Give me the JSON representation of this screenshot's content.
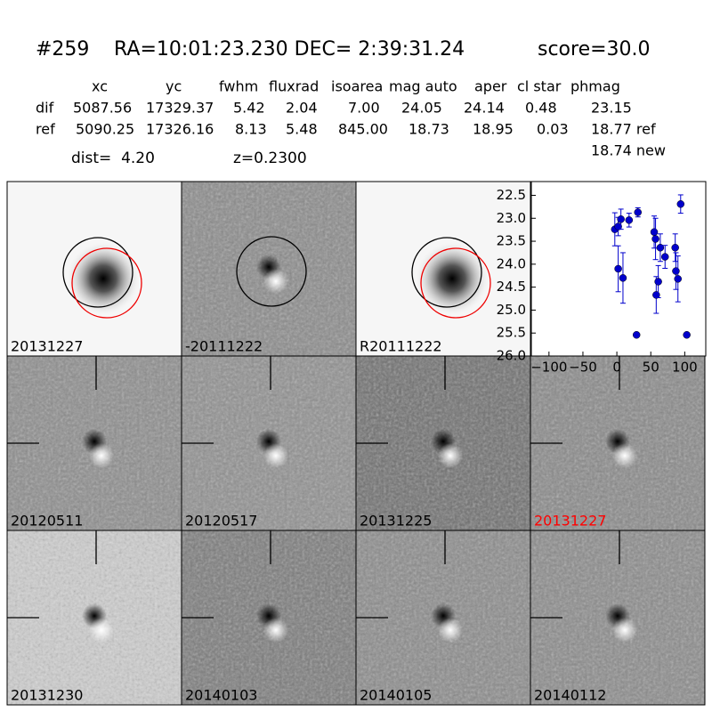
{
  "header": {
    "id": "#259",
    "coords": "RA=10:01:23.230 DEC= 2:39:31.24",
    "score": "score=30.0"
  },
  "table": {
    "columns": [
      "xc",
      "yc",
      "fwhm",
      "fluxrad",
      "isoarea",
      "mag auto",
      "aper",
      "cl star",
      "phmag"
    ],
    "rows": [
      {
        "label": "dif",
        "cells": [
          "5087.56",
          "17329.37",
          "5.42",
          "2.04",
          "7.00",
          "24.05",
          "24.14",
          "0.48",
          "23.15"
        ]
      },
      {
        "label": "ref",
        "cells": [
          "5090.25",
          "17326.16",
          "8.13",
          "5.48",
          "845.00",
          "18.73",
          "18.95",
          "0.03",
          "18.77 ref"
        ]
      }
    ],
    "extra": "18.74 new"
  },
  "dist": "dist=  4.20",
  "z": "z=0.2300",
  "stamps": [
    {
      "label": "20131227"
    },
    {
      "label": "-20111222"
    },
    {
      "label": "R20111222"
    },
    {
      "label": "20120511"
    },
    {
      "label": "20120517"
    },
    {
      "label": "20131225"
    },
    {
      "label": "20131227",
      "color": "#ff0000"
    },
    {
      "label": "20131230"
    },
    {
      "label": "20140103"
    },
    {
      "label": "20140105"
    },
    {
      "label": "20140112"
    }
  ],
  "chart_data": {
    "type": "scatter",
    "x": [
      -3,
      2,
      6,
      2,
      9,
      18,
      31,
      29,
      55,
      57,
      58,
      61,
      64,
      71,
      86,
      87,
      90,
      94,
      103
    ],
    "series": [
      {
        "color": "#0000cc",
        "values": [
          23.24,
          23.18,
          23.02,
          24.1,
          24.3,
          23.04,
          22.87,
          25.54,
          23.3,
          23.45,
          24.67,
          24.38,
          23.64,
          23.84,
          23.64,
          24.15,
          24.32,
          22.69,
          25.54
        ],
        "errors": [
          0.36,
          0.2,
          0.22,
          0.5,
          0.55,
          0.15,
          0.1,
          null,
          0.35,
          0.45,
          0.4,
          0.35,
          0.3,
          0.25,
          0.3,
          0.4,
          0.5,
          0.2,
          null
        ]
      }
    ],
    "xlim": [
      -126,
      131
    ],
    "ylim": [
      22.2,
      26.0
    ],
    "y_inverted": true,
    "xticks": [
      {
        "value": -100,
        "label": "−100"
      },
      {
        "value": -50,
        "label": "−50"
      },
      0,
      50,
      100
    ],
    "yticks": [
      22.5,
      {
        "value": 23,
        "label": "23.0"
      },
      23.5,
      {
        "value": 24,
        "label": "24.0"
      },
      24.5,
      {
        "value": 25,
        "label": "25.0"
      },
      25.5,
      {
        "value": 26,
        "label": "26.0"
      }
    ]
  }
}
